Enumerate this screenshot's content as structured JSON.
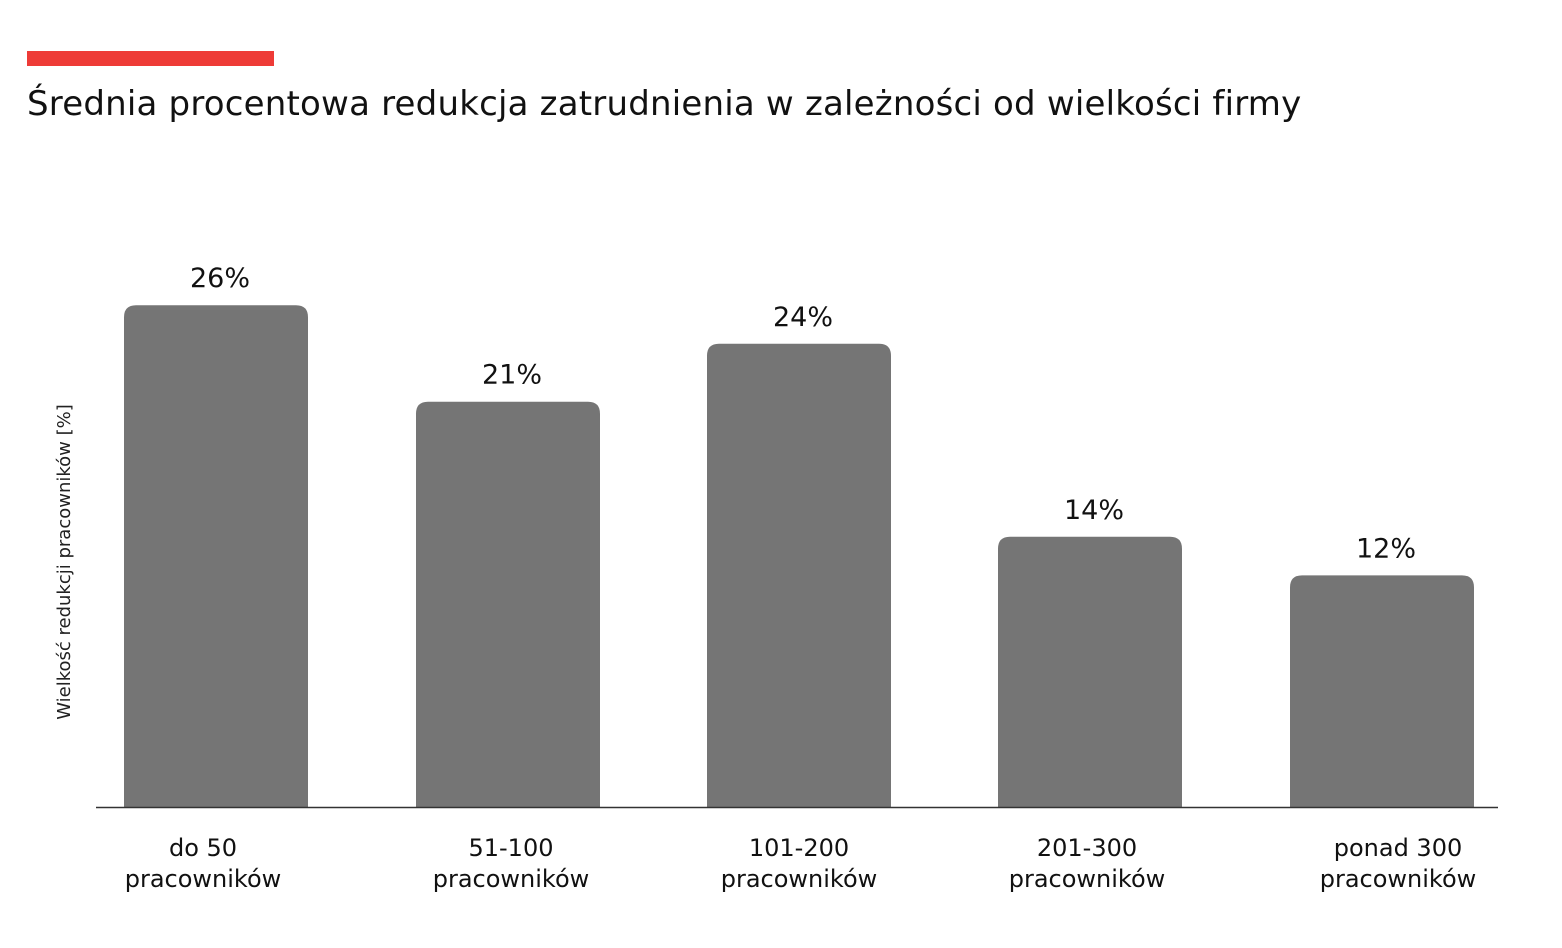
{
  "colors": {
    "accent": "#ee3b37",
    "bar": "#757575",
    "axis": "#333333",
    "text": "#111111"
  },
  "chart_data": {
    "type": "bar",
    "title": "Średnia procentowa redukcja zatrudnienia w zależności od wielkości firmy",
    "xlabel": "",
    "ylabel": "Wielkość redukcji pracowników [%]",
    "ylim": [
      0,
      30
    ],
    "grid": false,
    "legend": "none",
    "categories": [
      [
        "do 50",
        "pracowników"
      ],
      [
        "51-100",
        "pracowników"
      ],
      [
        "101-200",
        "pracowników"
      ],
      [
        "201-300",
        "pracowników"
      ],
      [
        "ponad 300",
        "pracowników"
      ]
    ],
    "values": [
      26,
      21,
      24,
      14,
      12
    ],
    "data_labels": [
      "26%",
      "21%",
      "24%",
      "14%",
      "12%"
    ]
  }
}
